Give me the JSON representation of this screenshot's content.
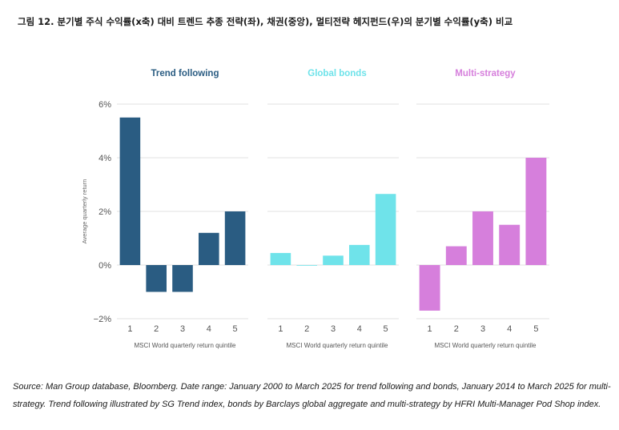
{
  "figure_title": "그림 12. 분기별 주식 수익률(x축) 대비 트렌드 추종 전략(좌), 채권(중앙), 멀티전략 헤지펀드(우)의 분기별 수익률(y축) 비교",
  "source_note": "Source: Man Group database, Bloomberg. Date range: January 2000 to March 2025 for trend following and bonds, January 2014 to March 2025 for multi-strategy. Trend following illustrated by SG Trend index, bonds by Barclays global aggregate and multi-strategy by HFRI Multi-Manager Pod Shop index.",
  "chart_data": [
    {
      "type": "bar",
      "title": "Trend following",
      "color": "#2a5c82",
      "categories": [
        "1",
        "2",
        "3",
        "4",
        "5"
      ],
      "values": [
        5.5,
        -1.0,
        -1.0,
        1.2,
        2.0
      ],
      "xlabel": "MSCI World quarterly return quintile",
      "ylabel": "Average quarterly return",
      "ylim": [
        -2,
        6
      ],
      "yticks": [
        "−2%",
        "0%",
        "2%",
        "4%",
        "6%"
      ],
      "grid": true
    },
    {
      "type": "bar",
      "title": "Global bonds",
      "color": "#6fe3ea",
      "categories": [
        "1",
        "2",
        "3",
        "4",
        "5"
      ],
      "values": [
        0.45,
        0.0,
        0.35,
        0.75,
        2.65
      ],
      "xlabel": "MSCI World quarterly return quintile",
      "ylim": [
        -2,
        6
      ],
      "grid": true
    },
    {
      "type": "bar",
      "title": "Multi-strategy",
      "color": "#d67fdc",
      "categories": [
        "1",
        "2",
        "3",
        "4",
        "5"
      ],
      "values": [
        -1.7,
        0.7,
        2.0,
        1.5,
        4.0
      ],
      "xlabel": "MSCI World quarterly return quintile",
      "ylim": [
        -2,
        6
      ],
      "grid": true
    }
  ]
}
